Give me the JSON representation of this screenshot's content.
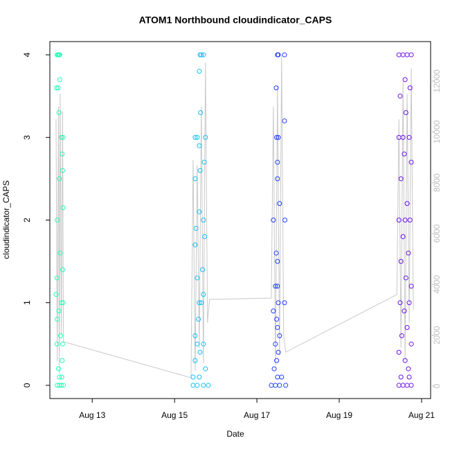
{
  "chart_data": {
    "type": "scatter",
    "title": "ATOM1 Northbound cloudindicator_CAPS",
    "x_label": "Date",
    "y_label": "cloudindicator_CAPS",
    "xlim": [
      11.97,
      21.22
    ],
    "xticks": [
      {
        "value": 13,
        "label": "Aug 13"
      },
      {
        "value": 15,
        "label": "Aug 15"
      },
      {
        "value": 17,
        "label": "Aug 17"
      },
      {
        "value": 19,
        "label": "Aug 19"
      },
      {
        "value": 21,
        "label": "Aug 21"
      }
    ],
    "ylim": [
      -0.16,
      4.16
    ],
    "yticks": [
      0,
      1,
      2,
      3,
      4
    ],
    "y2lim": [
      -491,
      13554
    ],
    "y2ticks": [
      0,
      2000,
      4000,
      6000,
      8000,
      10000,
      12000
    ],
    "y2color": "#bebebe",
    "grid": false,
    "series": [
      {
        "color": "#1fffb4",
        "x": [
          12.15,
          12.17,
          12.19,
          12.21,
          12.13,
          12.17,
          12.21,
          12.19,
          12.25,
          12.29,
          12.27,
          12.28,
          12.2,
          12.29,
          12.15,
          12.22,
          12.28,
          12.14,
          12.12,
          12.25,
          12.29,
          12.19,
          12.15,
          12.23,
          12.14,
          12.28,
          12.27,
          12.18,
          12.2,
          12.26,
          12.15,
          12.2,
          12.25,
          12.3
        ],
        "values": [
          4,
          4,
          4,
          4,
          3.6,
          3.6,
          3.7,
          3.3,
          3,
          3,
          2.8,
          2.6,
          2.5,
          2.15,
          2,
          1.6,
          1.4,
          1.3,
          1.1,
          1,
          1,
          0.9,
          0.8,
          0.6,
          0.5,
          0.5,
          0.3,
          0.2,
          0.1,
          0.1,
          0,
          0,
          0,
          0
        ]
      },
      {
        "color": "#12bff0",
        "x": [
          15.62,
          15.65,
          15.7,
          15.6,
          15.63,
          15.5,
          15.55,
          15.75,
          15.6,
          15.72,
          15.62,
          15.5,
          15.6,
          15.7,
          15.52,
          15.73,
          15.5,
          15.68,
          15.55,
          15.7,
          15.6,
          15.65,
          15.58,
          15.5,
          15.55,
          15.7,
          15.62,
          15.5,
          15.75,
          15.45,
          15.6,
          15.45,
          15.55,
          15.7,
          15.82
        ],
        "values": [
          4,
          4,
          4,
          3.8,
          3.3,
          3,
          3,
          3,
          2.9,
          2.7,
          2.6,
          2.5,
          2.1,
          2,
          1.9,
          1.8,
          1.7,
          1.4,
          1.3,
          1.1,
          1,
          1,
          0.8,
          0.6,
          0.5,
          0.5,
          0.4,
          0.3,
          0.2,
          0.1,
          0.1,
          0,
          0,
          0,
          0
        ]
      },
      {
        "color": "#1f3dff",
        "x": [
          17.5,
          17.52,
          17.67,
          17.47,
          17.67,
          17.48,
          17.52,
          17.5,
          17.5,
          17.55,
          17.4,
          17.68,
          17.47,
          17.5,
          17.45,
          17.5,
          17.52,
          17.67,
          17.4,
          17.48,
          17.5,
          17.55,
          17.45,
          17.52,
          17.48,
          17.42,
          17.5,
          17.6,
          17.35,
          17.45,
          17.55,
          17.7
        ],
        "values": [
          4,
          4,
          4,
          3.6,
          3.2,
          3,
          3,
          2.7,
          2.5,
          2.2,
          2,
          2,
          1.6,
          1.5,
          1.2,
          1.2,
          1,
          1,
          0.9,
          0.8,
          0.7,
          0.6,
          0.5,
          0.4,
          0.3,
          0.2,
          0.1,
          0.1,
          0,
          0,
          0,
          0
        ]
      },
      {
        "color": "#6a12e8",
        "x": [
          20.45,
          20.55,
          20.65,
          20.75,
          20.6,
          20.72,
          20.48,
          20.62,
          20.45,
          20.55,
          20.7,
          20.58,
          20.75,
          20.5,
          20.65,
          20.45,
          20.6,
          20.72,
          20.55,
          20.68,
          20.5,
          20.62,
          20.75,
          20.48,
          20.7,
          20.58,
          20.65,
          20.52,
          20.75,
          20.45,
          20.6,
          20.68,
          20.5,
          20.7,
          20.45,
          20.55,
          20.65,
          20.75
        ],
        "values": [
          4,
          4,
          4,
          4,
          3.7,
          3.6,
          3.5,
          3.3,
          3,
          3,
          3,
          2.8,
          2.7,
          2.5,
          2.2,
          2,
          2,
          2,
          1.8,
          1.6,
          1.5,
          1.3,
          1.2,
          1,
          1,
          0.9,
          0.7,
          0.6,
          0.5,
          0.4,
          0.3,
          0.2,
          0.1,
          0.1,
          0,
          0,
          0,
          0
        ]
      },
      {
        "type": "line",
        "axis": "y2",
        "color": "#c8c8c8",
        "x": [
          12.12,
          12.15,
          12.18,
          12.2,
          12.22,
          12.25,
          12.28,
          12.3,
          15.4,
          15.45,
          15.5,
          15.55,
          15.6,
          15.65,
          15.7,
          15.75,
          15.8,
          15.85,
          17.35,
          17.4,
          17.45,
          17.5,
          17.55,
          17.6,
          17.65,
          17.7,
          20.4,
          20.45,
          20.5,
          20.55,
          20.6,
          20.65,
          20.7,
          20.75,
          20.8
        ],
        "values": [
          10500,
          1000,
          11000,
          500,
          11500,
          2000,
          10800,
          1745,
          327,
          8900,
          600,
          8700,
          1500,
          11000,
          900,
          12736,
          2500,
          3409,
          3464,
          11000,
          800,
          11800,
          1200,
          13000,
          2000,
          1336,
          3600,
          10500,
          1500,
          12000,
          1000,
          11500,
          2500,
          12500,
          3000
        ]
      }
    ]
  }
}
